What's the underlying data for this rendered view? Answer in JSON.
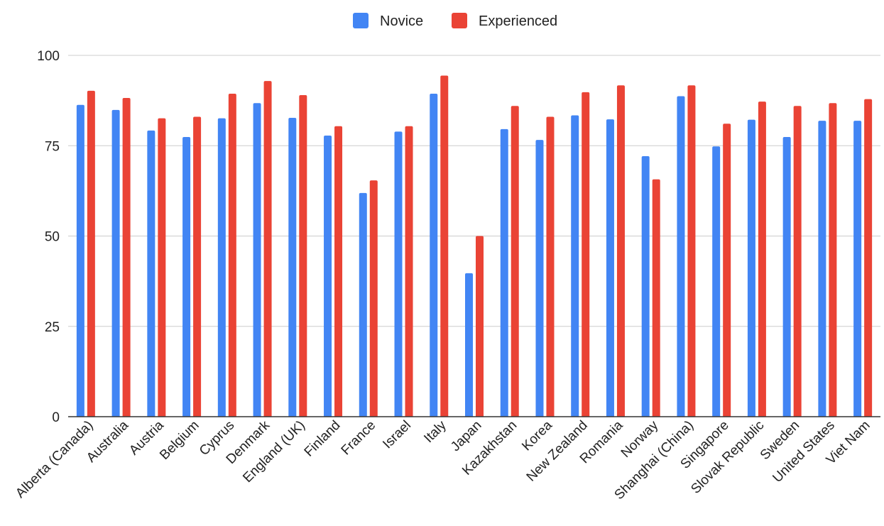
{
  "chart_data": {
    "type": "bar",
    "title": "",
    "xlabel": "",
    "ylabel": "",
    "ylim": [
      0,
      100
    ],
    "yticks": [
      0,
      25,
      50,
      75,
      100
    ],
    "grid": true,
    "legend_position": "top",
    "categories": [
      "Alberta (Canada)",
      "Australia",
      "Austria",
      "Belgium",
      "Cyprus",
      "Denmark",
      "England (UK)",
      "Finland",
      "France",
      "Israel",
      "Italy",
      "Japan",
      "Kazakhstan",
      "Korea",
      "New Zealand",
      "Romania",
      "Norway",
      "Shanghai (China)",
      "Singapore",
      "Slovak Republic",
      "Sweden",
      "United States",
      "Viet Nam"
    ],
    "series": [
      {
        "name": "Novice",
        "color": "#4285f4",
        "values": [
          86.3,
          84.9,
          79.2,
          77.4,
          82.6,
          86.8,
          82.7,
          77.8,
          61.9,
          78.9,
          89.4,
          39.7,
          79.6,
          76.6,
          83.4,
          82.3,
          72.1,
          88.7,
          74.8,
          82.2,
          77.4,
          81.9,
          81.9
        ]
      },
      {
        "name": "Experienced",
        "color": "#ea4335",
        "values": [
          90.2,
          88.2,
          82.6,
          83.0,
          89.4,
          92.9,
          89.0,
          80.4,
          65.4,
          80.4,
          94.4,
          50.0,
          86.0,
          83.0,
          89.8,
          91.7,
          65.7,
          91.7,
          81.1,
          87.2,
          86.0,
          86.8,
          87.9
        ]
      }
    ]
  }
}
